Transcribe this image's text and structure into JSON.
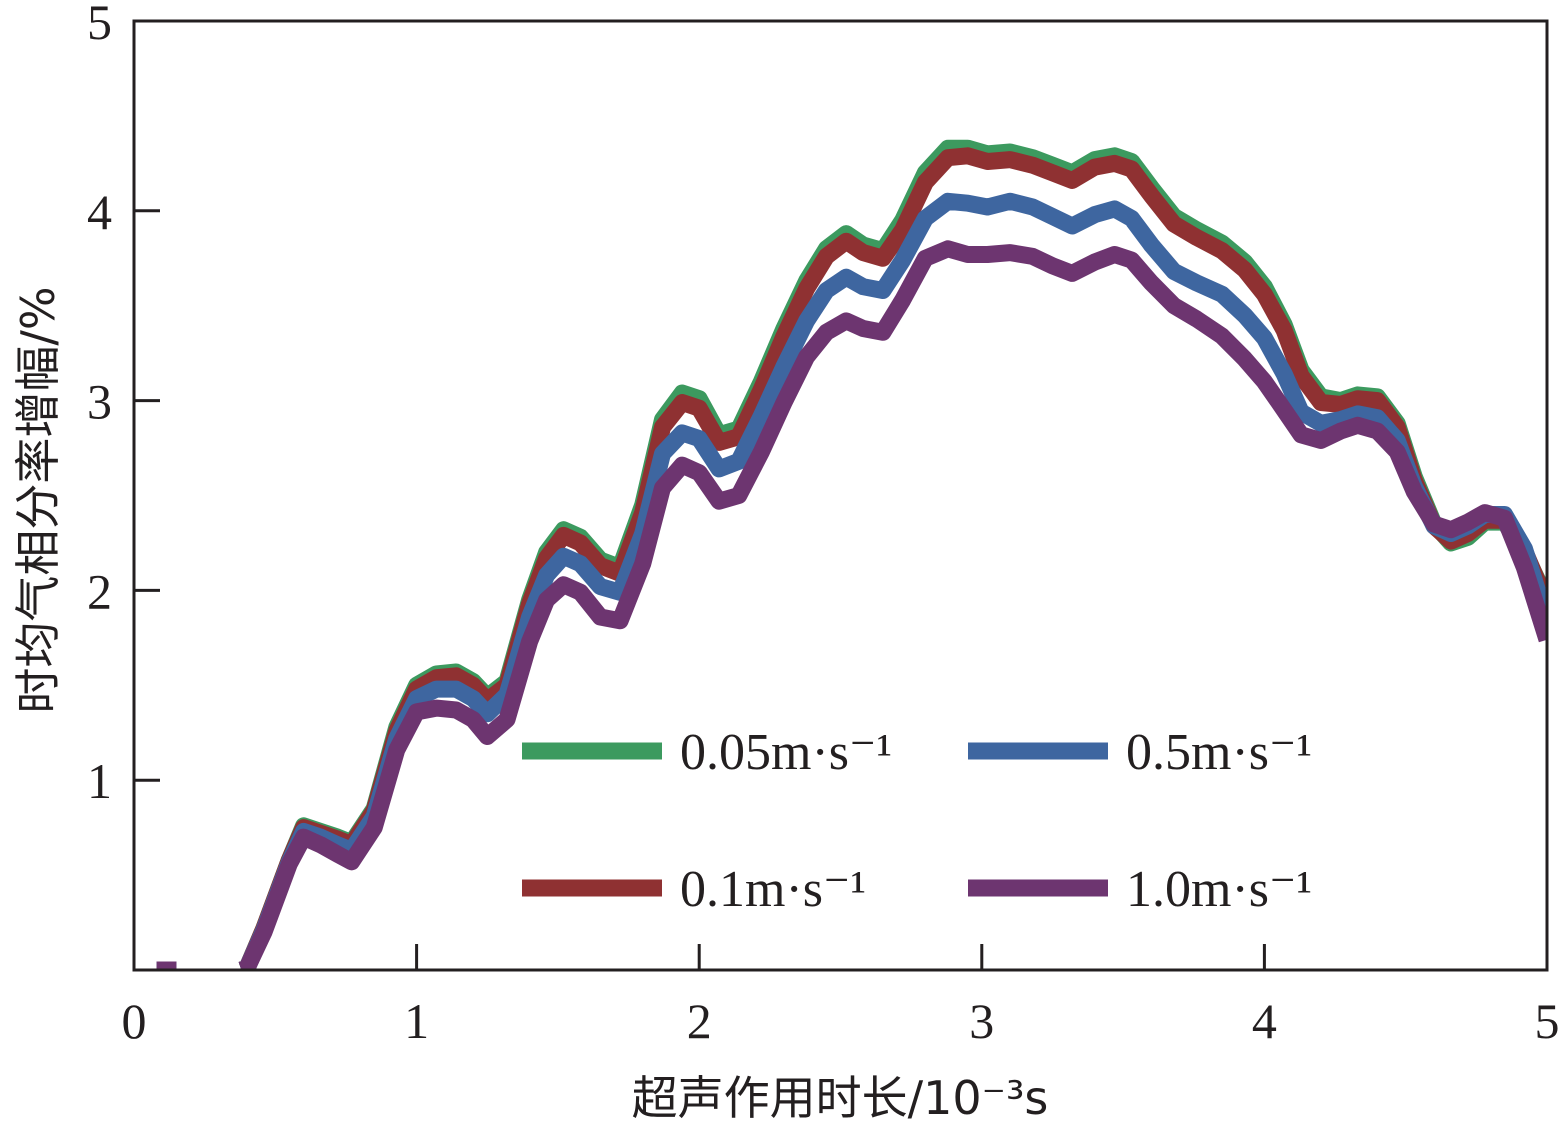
{
  "chart_data": {
    "type": "line",
    "title": "",
    "xlabel": "超声作用时长/10⁻³s",
    "ylabel": "时均气相分率增幅/%",
    "xlim": [
      0,
      5
    ],
    "ylim": [
      0,
      5
    ],
    "xticks": [
      0,
      1,
      2,
      3,
      4,
      5
    ],
    "yticks": [
      1,
      2,
      3,
      4,
      5
    ],
    "xtick_labels": [
      "0",
      "1",
      "2",
      "3",
      "4",
      "5"
    ],
    "ytick_labels": [
      "1",
      "2",
      "3",
      "4",
      "5"
    ],
    "grid": false,
    "legend_position": "center-right",
    "x": [
      0.08,
      0.15,
      0.38,
      0.4,
      0.46,
      0.55,
      0.6,
      0.66,
      0.72,
      0.77,
      0.85,
      0.93,
      1.0,
      1.07,
      1.14,
      1.2,
      1.25,
      1.32,
      1.4,
      1.46,
      1.52,
      1.58,
      1.65,
      1.72,
      1.8,
      1.87,
      1.94,
      2.0,
      2.07,
      2.14,
      2.22,
      2.3,
      2.38,
      2.45,
      2.52,
      2.58,
      2.65,
      2.72,
      2.8,
      2.88,
      2.95,
      3.02,
      3.1,
      3.18,
      3.25,
      3.32,
      3.4,
      3.47,
      3.53,
      3.6,
      3.68,
      3.76,
      3.85,
      3.93,
      4.0,
      4.07,
      4.13,
      4.2,
      4.27,
      4.33,
      4.4,
      4.47,
      4.53,
      4.6,
      4.66,
      4.72,
      4.78,
      4.85,
      4.92,
      5.0
    ],
    "series": [
      {
        "name": "0.05m·s⁻¹",
        "color": "#3c9a5f",
        "values": [
          0.0,
          0.0,
          0.0,
          0.01,
          0.22,
          0.58,
          0.76,
          0.73,
          0.7,
          0.67,
          0.85,
          1.28,
          1.5,
          1.56,
          1.57,
          1.52,
          1.44,
          1.52,
          1.95,
          2.2,
          2.32,
          2.28,
          2.16,
          2.12,
          2.45,
          2.9,
          3.04,
          3.01,
          2.82,
          2.85,
          3.1,
          3.38,
          3.63,
          3.8,
          3.88,
          3.82,
          3.79,
          3.95,
          4.2,
          4.33,
          4.33,
          4.3,
          4.31,
          4.28,
          4.24,
          4.2,
          4.27,
          4.29,
          4.26,
          4.12,
          3.97,
          3.9,
          3.83,
          3.73,
          3.6,
          3.4,
          3.16,
          3.02,
          3.0,
          3.03,
          3.02,
          2.88,
          2.6,
          2.35,
          2.25,
          2.28,
          2.36,
          2.36,
          2.2,
          1.95
        ]
      },
      {
        "name": "0.1m·s⁻¹",
        "color": "#8f3132",
        "values": [
          0.0,
          0.0,
          0.0,
          0.01,
          0.22,
          0.58,
          0.75,
          0.72,
          0.69,
          0.66,
          0.84,
          1.26,
          1.48,
          1.54,
          1.55,
          1.5,
          1.42,
          1.5,
          1.93,
          2.17,
          2.29,
          2.25,
          2.13,
          2.09,
          2.41,
          2.86,
          2.99,
          2.96,
          2.78,
          2.81,
          3.06,
          3.34,
          3.59,
          3.76,
          3.84,
          3.78,
          3.75,
          3.9,
          4.15,
          4.28,
          4.29,
          4.26,
          4.27,
          4.24,
          4.2,
          4.16,
          4.23,
          4.25,
          4.22,
          4.08,
          3.93,
          3.86,
          3.79,
          3.69,
          3.56,
          3.37,
          3.13,
          2.99,
          2.98,
          3.01,
          3.0,
          2.86,
          2.58,
          2.34,
          2.26,
          2.3,
          2.37,
          2.37,
          2.21,
          1.93
        ]
      },
      {
        "name": "0.5m·s⁻¹",
        "color": "#3e66a0",
        "values": [
          0.0,
          0.0,
          0.0,
          0.01,
          0.21,
          0.57,
          0.73,
          0.7,
          0.66,
          0.63,
          0.81,
          1.22,
          1.43,
          1.48,
          1.48,
          1.43,
          1.35,
          1.45,
          1.86,
          2.08,
          2.18,
          2.14,
          2.02,
          1.99,
          2.3,
          2.72,
          2.83,
          2.8,
          2.64,
          2.68,
          2.92,
          3.18,
          3.42,
          3.58,
          3.65,
          3.6,
          3.58,
          3.74,
          3.96,
          4.05,
          4.04,
          4.02,
          4.05,
          4.02,
          3.97,
          3.92,
          3.98,
          4.01,
          3.96,
          3.82,
          3.68,
          3.62,
          3.56,
          3.45,
          3.33,
          3.14,
          2.94,
          2.88,
          2.9,
          2.93,
          2.91,
          2.79,
          2.55,
          2.34,
          2.3,
          2.34,
          2.4,
          2.4,
          2.22,
          1.84
        ]
      },
      {
        "name": "1.0m·s⁻¹",
        "color": "#6d3570",
        "values": [
          0.0,
          0.0,
          0.0,
          0.01,
          0.2,
          0.56,
          0.7,
          0.66,
          0.61,
          0.57,
          0.75,
          1.16,
          1.36,
          1.38,
          1.37,
          1.32,
          1.23,
          1.32,
          1.73,
          1.95,
          2.03,
          1.99,
          1.86,
          1.84,
          2.14,
          2.54,
          2.66,
          2.62,
          2.47,
          2.5,
          2.73,
          2.99,
          3.23,
          3.36,
          3.42,
          3.38,
          3.36,
          3.53,
          3.75,
          3.8,
          3.77,
          3.77,
          3.78,
          3.76,
          3.71,
          3.67,
          3.73,
          3.77,
          3.74,
          3.62,
          3.5,
          3.43,
          3.34,
          3.22,
          3.1,
          2.95,
          2.82,
          2.79,
          2.84,
          2.87,
          2.84,
          2.73,
          2.52,
          2.35,
          2.32,
          2.36,
          2.41,
          2.38,
          2.12,
          1.74
        ]
      }
    ]
  }
}
